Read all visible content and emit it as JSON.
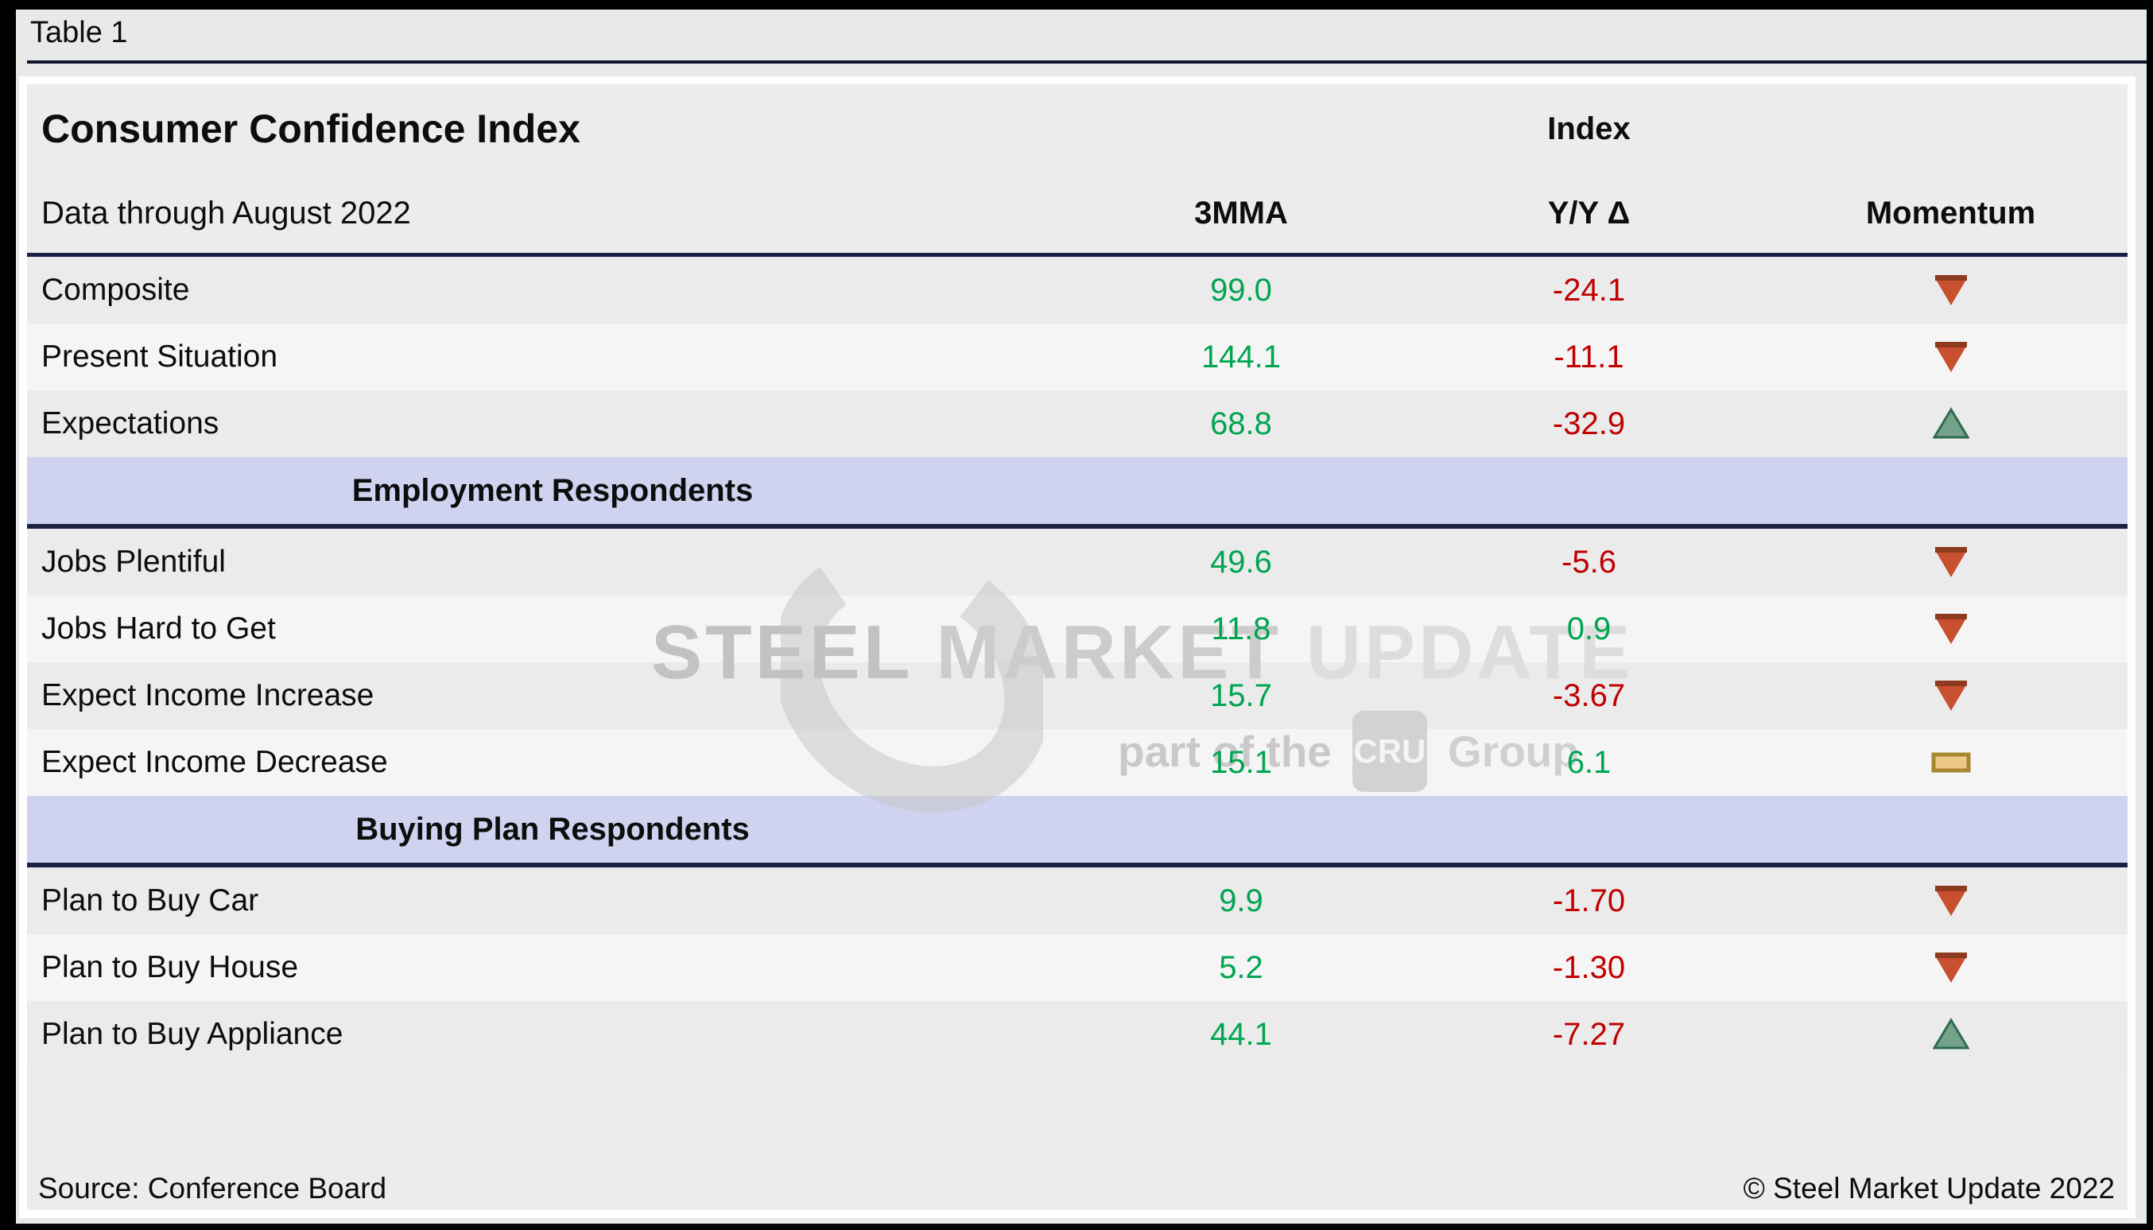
{
  "page": {
    "table_label": "Table 1"
  },
  "header": {
    "title": "Consumer Confidence Index",
    "subtitle": "Data through August 2022",
    "index_group_label": "Index",
    "columns": [
      "3MMA",
      "Y/Y Δ",
      "Momentum"
    ]
  },
  "table": {
    "rows": [
      {
        "type": "data",
        "label": "Composite",
        "mma": "99.0",
        "mma_color": "green",
        "yy": "-24.1",
        "yy_color": "red",
        "momentum": "down"
      },
      {
        "type": "data",
        "label": "Present Situation",
        "mma": "144.1",
        "mma_color": "green",
        "yy": "-11.1",
        "yy_color": "red",
        "momentum": "down"
      },
      {
        "type": "data",
        "label": "Expectations",
        "mma": "68.8",
        "mma_color": "green",
        "yy": "-32.9",
        "yy_color": "red",
        "momentum": "up"
      },
      {
        "type": "section",
        "label": "Employment Respondents"
      },
      {
        "type": "data",
        "label": "Jobs Plentiful",
        "mma": "49.6",
        "mma_color": "green",
        "yy": "-5.6",
        "yy_color": "red",
        "momentum": "down"
      },
      {
        "type": "data",
        "label": "Jobs Hard to Get",
        "mma": "11.8",
        "mma_color": "green",
        "yy": "0.9",
        "yy_color": "green",
        "momentum": "down"
      },
      {
        "type": "data",
        "label": "Expect Income Increase",
        "mma": "15.7",
        "mma_color": "green",
        "yy": "-3.67",
        "yy_color": "red",
        "momentum": "down"
      },
      {
        "type": "data",
        "label": "Expect Income Decrease",
        "mma": "15.1",
        "mma_color": "green",
        "yy": "6.1",
        "yy_color": "green",
        "momentum": "flat"
      },
      {
        "type": "section",
        "label": "Buying Plan Respondents"
      },
      {
        "type": "data",
        "label": "Plan to Buy Car",
        "mma": "9.9",
        "mma_color": "green",
        "yy": "-1.70",
        "yy_color": "red",
        "momentum": "down"
      },
      {
        "type": "data",
        "label": "Plan to Buy House",
        "mma": "5.2",
        "mma_color": "green",
        "yy": "-1.30",
        "yy_color": "red",
        "momentum": "down"
      },
      {
        "type": "data",
        "label": "Plan to Buy Appliance",
        "mma": "44.1",
        "mma_color": "green",
        "yy": "-7.27",
        "yy_color": "red",
        "momentum": "up"
      }
    ]
  },
  "footer": {
    "source": "Source: Conference Board",
    "copyright": "© Steel Market Update 2022"
  },
  "watermark": {
    "word1": "STEEL",
    "word2": "MARKET",
    "word3": "UPDATE",
    "line2_prefix": "part of the",
    "badge": "CRU",
    "line2_suffix": "Group"
  },
  "colors": {
    "green": "#00a551",
    "red": "#c10000",
    "navy": "#1a2142",
    "lavender": "#cfd3f0",
    "row_dark": "#ebebeb",
    "row_light": "#f5f5f5",
    "down_fill": "#c8502e",
    "down_cap": "#8e3a1f",
    "up_fill": "#74a28a",
    "up_edge": "#2e6b51",
    "flat_fill": "#edc988",
    "flat_edge": "#a8862c",
    "watermark_ring": "#c6c6c6"
  }
}
